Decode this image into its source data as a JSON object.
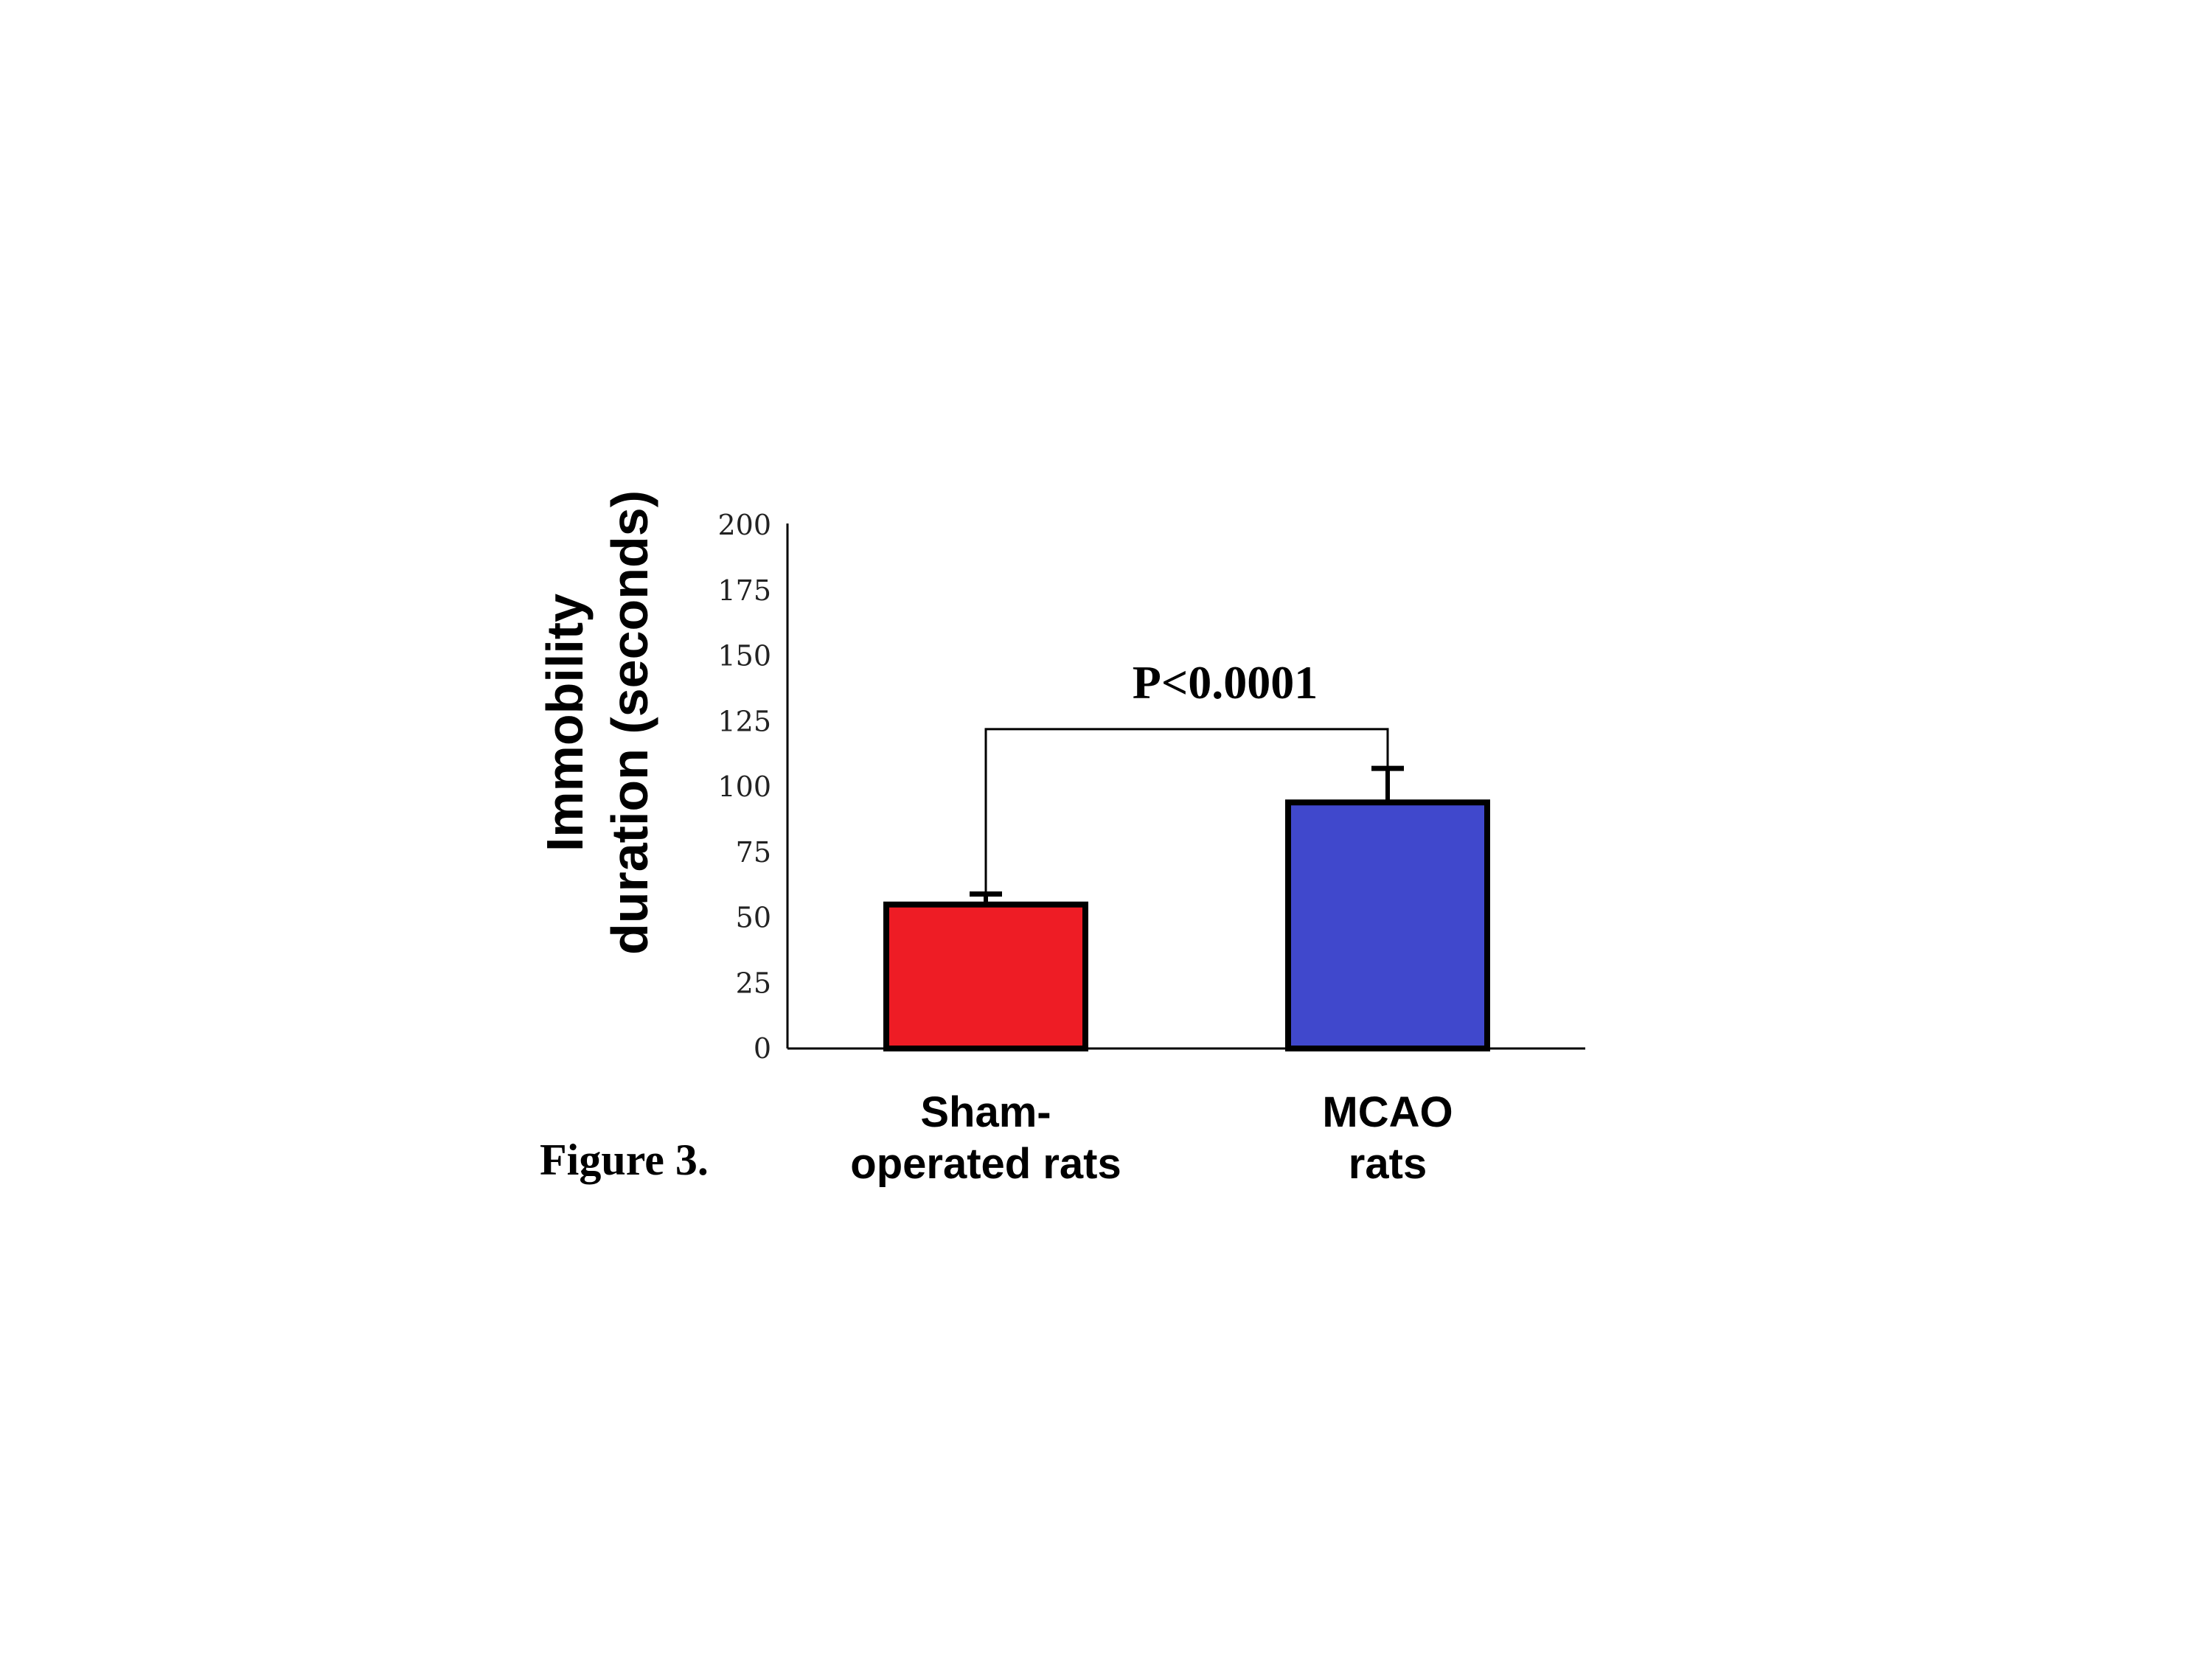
{
  "caption": "Figure 3.",
  "chart_data": {
    "type": "bar",
    "categories": [
      [
        "Sham-",
        "operated rats"
      ],
      [
        "MCAO",
        "rats"
      ]
    ],
    "values": [
      55,
      94
    ],
    "errors": [
      4,
      13
    ],
    "colors": [
      "#ee1c25",
      "#4048cc"
    ],
    "ylabel": [
      "Immobility",
      "duration (seconds)"
    ],
    "ylim": [
      0,
      200
    ],
    "yticks": [
      0,
      25,
      50,
      75,
      100,
      125,
      150,
      175,
      200
    ],
    "annotation": {
      "text": "P<0.0001",
      "bracket_y": 122
    },
    "grid": false,
    "legend": "none"
  }
}
